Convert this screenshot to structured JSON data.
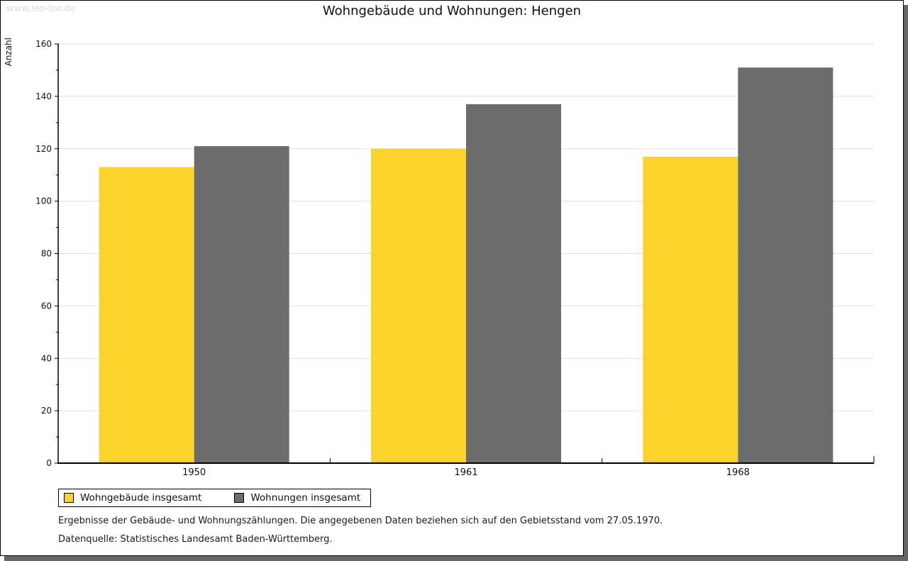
{
  "watermark": "www.leo-bw.de",
  "chart_data": {
    "type": "bar",
    "title": "Wohngebäude und Wohnungen: Hengen",
    "xlabel": "",
    "ylabel": "Anzahl",
    "categories": [
      "1950",
      "1961",
      "1968"
    ],
    "series": [
      {
        "name": "Wohngebäude insgesamt",
        "color": "#FCD32B",
        "values": [
          113,
          120,
          117
        ]
      },
      {
        "name": "Wohnungen insgesamt",
        "color": "#6C6C6C",
        "values": [
          121,
          137,
          151
        ]
      }
    ],
    "ylim": [
      0,
      160
    ],
    "y_major_step": 20,
    "y_minor_step": 10,
    "grid": true,
    "legend_position": "bottom-left"
  },
  "footer": {
    "line1": "Ergebnisse der Gebäude- und Wohnungszählungen. Die angegebenen Daten beziehen sich auf den Gebietsstand vom 27.05.1970.",
    "line2": "Datenquelle: Statistisches Landesamt Baden-Württemberg."
  },
  "colors": {
    "bar_yellow": "#FCD32B",
    "bar_gray": "#6C6C6C",
    "gridline": "#E0E0E0",
    "watermark": "#DDDDDD",
    "shadow": "#666666",
    "axis": "#000000"
  }
}
